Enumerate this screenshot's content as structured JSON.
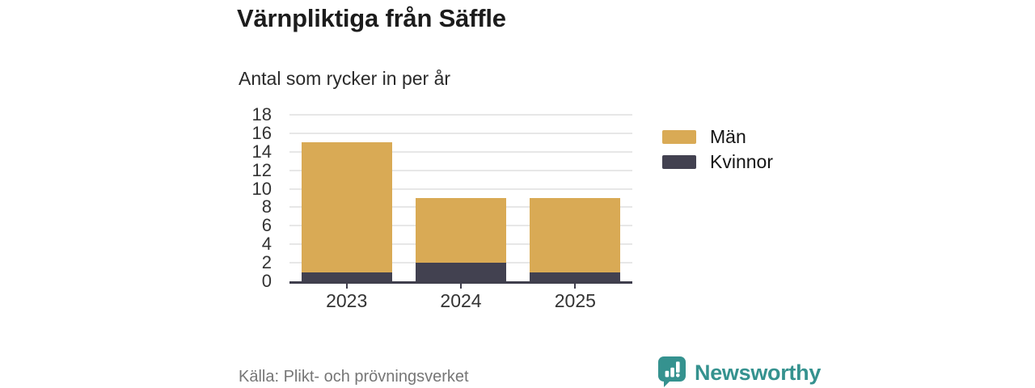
{
  "header": {
    "title": "Värnpliktiga från Säffle",
    "subtitle": "Antal som rycker in per år"
  },
  "footer": {
    "source": "Källa: Plikt- och prövningsverket",
    "brand": {
      "wordmark": "Newsworthy",
      "icon": "newsworthy-bar-chart-speech-bubble-icon",
      "color": "#35928f"
    }
  },
  "chart_data": {
    "type": "bar",
    "stacked": true,
    "title": "Värnpliktiga från Säffle",
    "subtitle": "Antal som rycker in per år",
    "categories": [
      "2023",
      "2024",
      "2025"
    ],
    "series": [
      {
        "name": "Män",
        "color": "#d9aa55",
        "values": [
          14,
          7,
          8
        ]
      },
      {
        "name": "Kvinnor",
        "color": "#424150",
        "values": [
          1,
          2,
          1
        ]
      }
    ],
    "stack_totals": [
      15,
      9,
      9
    ],
    "ylim": [
      0,
      18
    ],
    "ytick_step": 2,
    "yticks": [
      0,
      2,
      4,
      6,
      8,
      10,
      12,
      14,
      16,
      18
    ],
    "grid": true,
    "gridline_color": "#e7e7e7",
    "axis_color": "#3f3e4c",
    "legend_position": "right",
    "legend_order": [
      "Män",
      "Kvinnor"
    ]
  }
}
